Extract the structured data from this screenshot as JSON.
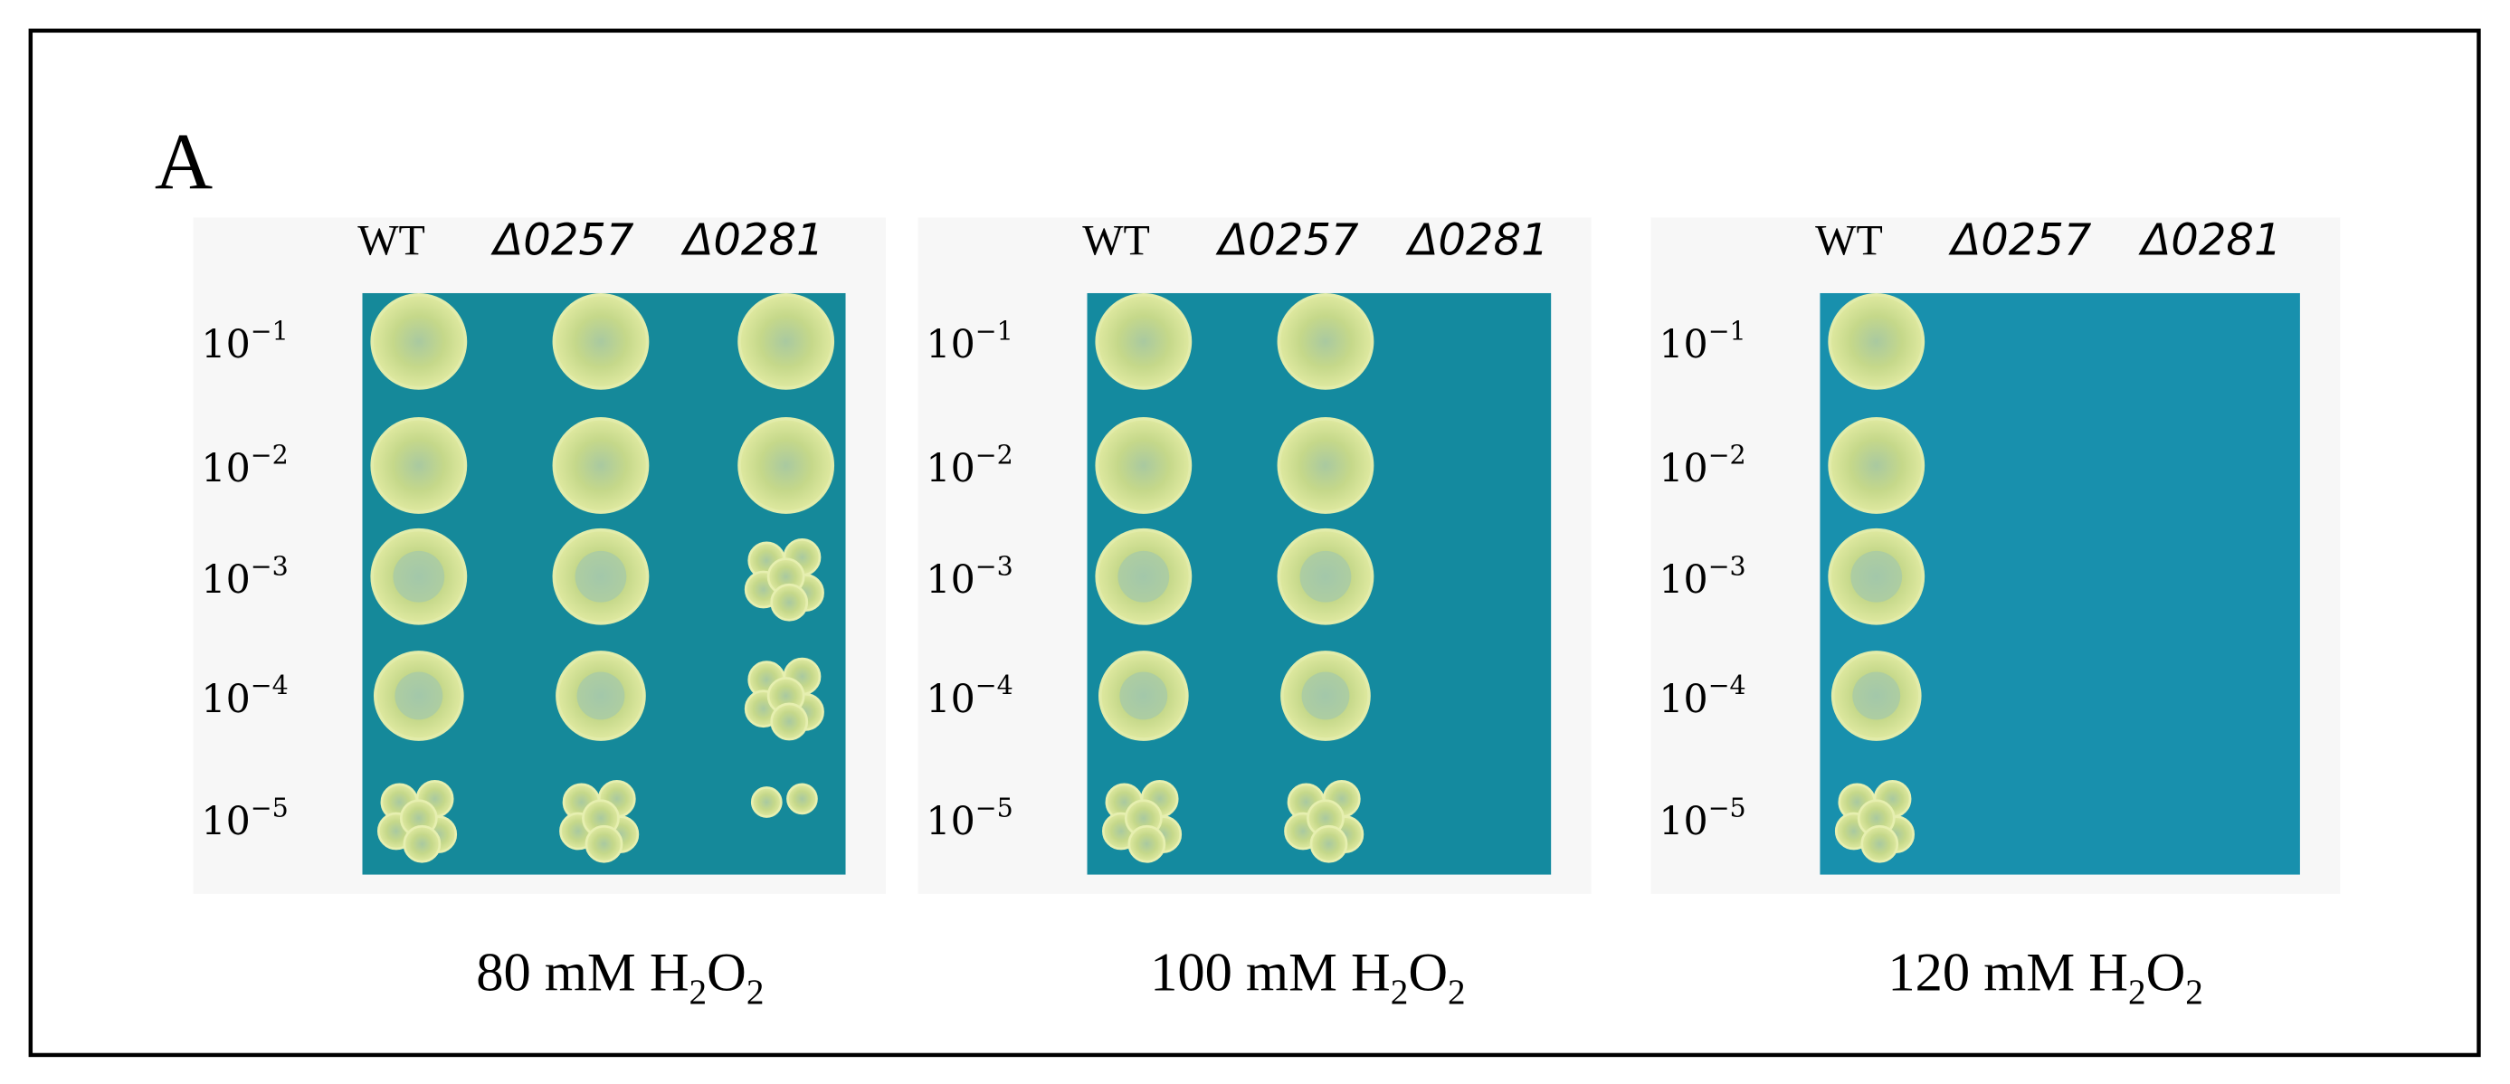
{
  "panel_label": "A",
  "panels": [
    {
      "columns": [
        "WT",
        "Δ0257",
        "Δ0281"
      ],
      "rows": [
        {
          "base": "10",
          "exp": "−1"
        },
        {
          "base": "10",
          "exp": "−2"
        },
        {
          "base": "10",
          "exp": "−3"
        },
        {
          "base": "10",
          "exp": "−4"
        },
        {
          "base": "10",
          "exp": "−5"
        }
      ],
      "caption": [
        "80 mM H",
        "2",
        "O",
        "2"
      ]
    },
    {
      "columns": [
        "WT",
        "Δ0257",
        "Δ0281"
      ],
      "rows": [
        {
          "base": "10",
          "exp": "−1"
        },
        {
          "base": "10",
          "exp": "−2"
        },
        {
          "base": "10",
          "exp": "−3"
        },
        {
          "base": "10",
          "exp": "−4"
        },
        {
          "base": "10",
          "exp": "−5"
        }
      ],
      "caption": [
        "100 mM H",
        "2",
        "O",
        "2"
      ]
    },
    {
      "columns": [
        "WT",
        "Δ0257",
        "Δ0281"
      ],
      "rows": [
        {
          "base": "10",
          "exp": "−1"
        },
        {
          "base": "10",
          "exp": "−2"
        },
        {
          "base": "10",
          "exp": "−3"
        },
        {
          "base": "10",
          "exp": "−4"
        },
        {
          "base": "10",
          "exp": "−5"
        }
      ],
      "caption": [
        "120 mM  H",
        "2",
        "O",
        "2"
      ]
    }
  ]
}
